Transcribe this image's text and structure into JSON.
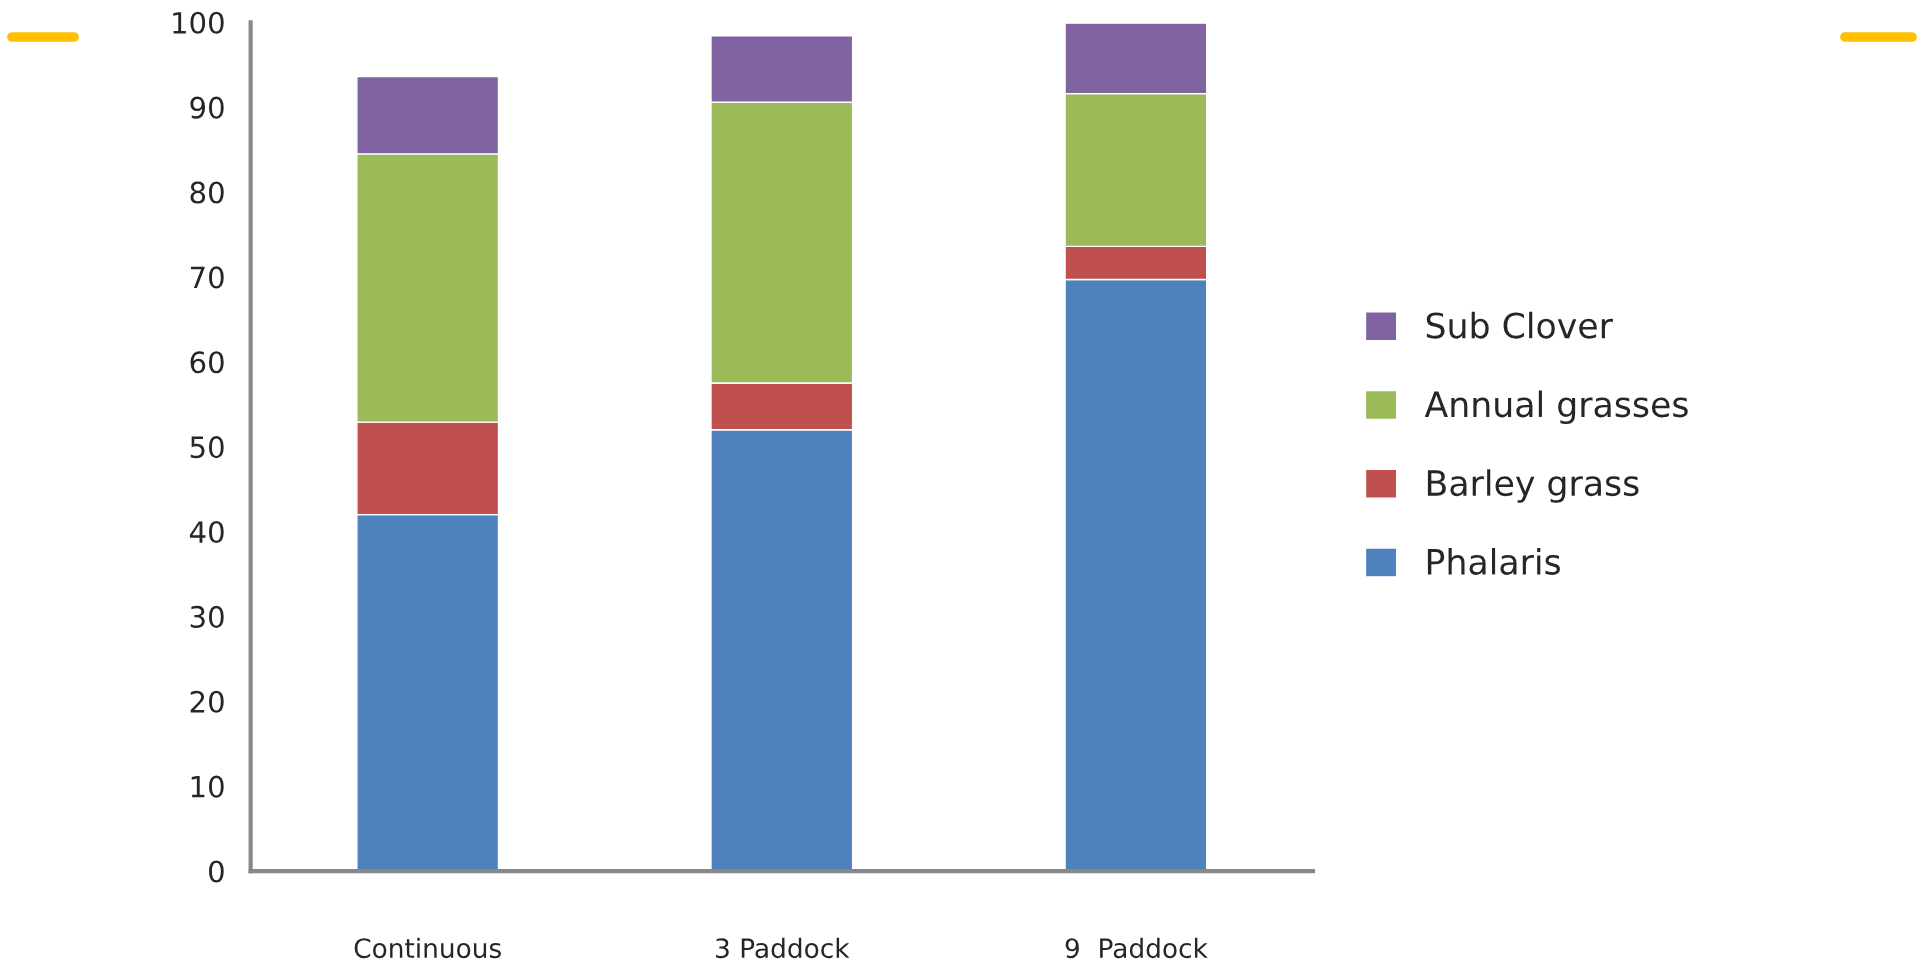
{
  "chart_data": {
    "type": "bar",
    "stacked": true,
    "categories": [
      "Continuous",
      "3 Paddock",
      "9  Paddock"
    ],
    "series": [
      {
        "name": "Phalaris",
        "color": "#4f81bd",
        "values": [
          42.0,
          52.0,
          69.7
        ]
      },
      {
        "name": "Barley grass",
        "color": "#c0504d",
        "values": [
          10.9,
          5.5,
          3.9
        ]
      },
      {
        "name": "Annual grasses",
        "color": "#9bbb59",
        "values": [
          31.6,
          33.1,
          18.0
        ]
      },
      {
        "name": "Sub Clover",
        "color": "#8064a2",
        "values": [
          9.1,
          7.8,
          8.3
        ]
      }
    ],
    "ylim": [
      0,
      100
    ],
    "yticks": [
      0,
      10,
      20,
      30,
      40,
      50,
      60,
      70,
      80,
      90,
      100
    ],
    "grid": false,
    "legend": "right"
  }
}
